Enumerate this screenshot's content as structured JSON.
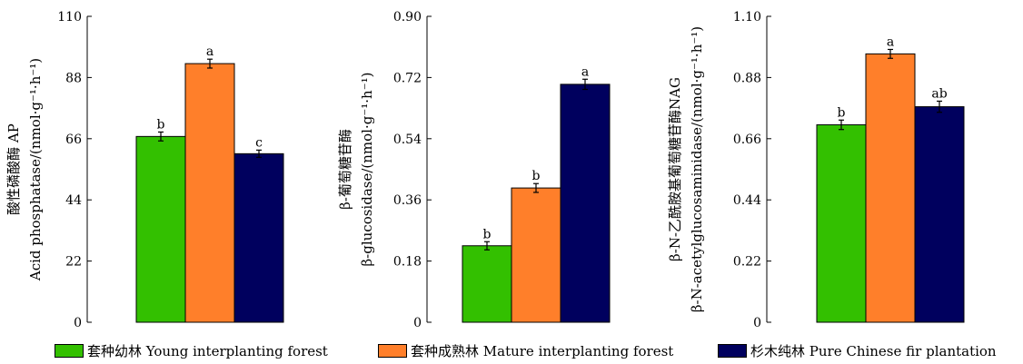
{
  "chart_data": [
    {
      "type": "bar",
      "ylabel_lines": [
        "酸性磷酸酶 AP",
        "Acid phosphatase/(nmol·g⁻¹·h⁻¹)"
      ],
      "ylim": [
        0,
        110
      ],
      "yticks": [
        0,
        22,
        44,
        66,
        88,
        110
      ],
      "series": [
        {
          "name": "套种幼林 Young interplanting forest",
          "values": [
            66.8
          ],
          "errors": [
            1.6
          ],
          "labels": [
            "b"
          ]
        },
        {
          "name": "套种成熟林 Mature interplanting forest",
          "values": [
            93.0
          ],
          "errors": [
            1.6
          ],
          "labels": [
            "a"
          ]
        },
        {
          "name": "杉木纯林 Pure Chinese fir plantation",
          "values": [
            60.6
          ],
          "errors": [
            1.3
          ],
          "labels": [
            "c"
          ]
        }
      ]
    },
    {
      "type": "bar",
      "ylabel_lines": [
        "β-葡萄糖苷酶",
        "β-glucosidase/(nmol·g⁻¹·h⁻¹)"
      ],
      "ylim": [
        0,
        0.9
      ],
      "yticks": [
        "0",
        "0.18",
        "0.36",
        "0.54",
        "0.72",
        "0.90"
      ],
      "series": [
        {
          "name": "套种幼林 Young interplanting forest",
          "values": [
            0.225
          ],
          "errors": [
            0.012
          ],
          "labels": [
            "b"
          ]
        },
        {
          "name": "套种成熟林 Mature interplanting forest",
          "values": [
            0.395
          ],
          "errors": [
            0.013
          ],
          "labels": [
            "b"
          ]
        },
        {
          "name": "杉木纯林 Pure Chinese fir plantation",
          "values": [
            0.7
          ],
          "errors": [
            0.015
          ],
          "labels": [
            "a"
          ]
        }
      ]
    },
    {
      "type": "bar",
      "ylabel_lines": [
        "β-N-乙酰胺基葡萄糖苷酶NAG",
        "β-N-acetylglucosaminidase/(nmol·g⁻¹·h⁻¹)"
      ],
      "ylim": [
        0,
        1.1
      ],
      "yticks": [
        "0",
        "0.22",
        "0.44",
        "0.66",
        "0.88",
        "1.10"
      ],
      "series": [
        {
          "name": "套种幼林 Young interplanting forest",
          "values": [
            0.71
          ],
          "errors": [
            0.017
          ],
          "labels": [
            "b"
          ]
        },
        {
          "name": "套种成熟林 Mature interplanting forest",
          "values": [
            0.965
          ],
          "errors": [
            0.016
          ],
          "labels": [
            "a"
          ]
        },
        {
          "name": "杉木纯林 Pure Chinese fir plantation",
          "values": [
            0.775
          ],
          "errors": [
            0.02
          ],
          "labels": [
            "ab"
          ]
        }
      ]
    }
  ],
  "colors": [
    "#33c000",
    "#ff7f2a",
    "#00005e"
  ],
  "legend": [
    {
      "label": "套种幼林 Young interplanting forest"
    },
    {
      "label": "套种成熟林 Mature interplanting forest"
    },
    {
      "label": "杉木纯林 Pure Chinese fir plantation"
    }
  ]
}
